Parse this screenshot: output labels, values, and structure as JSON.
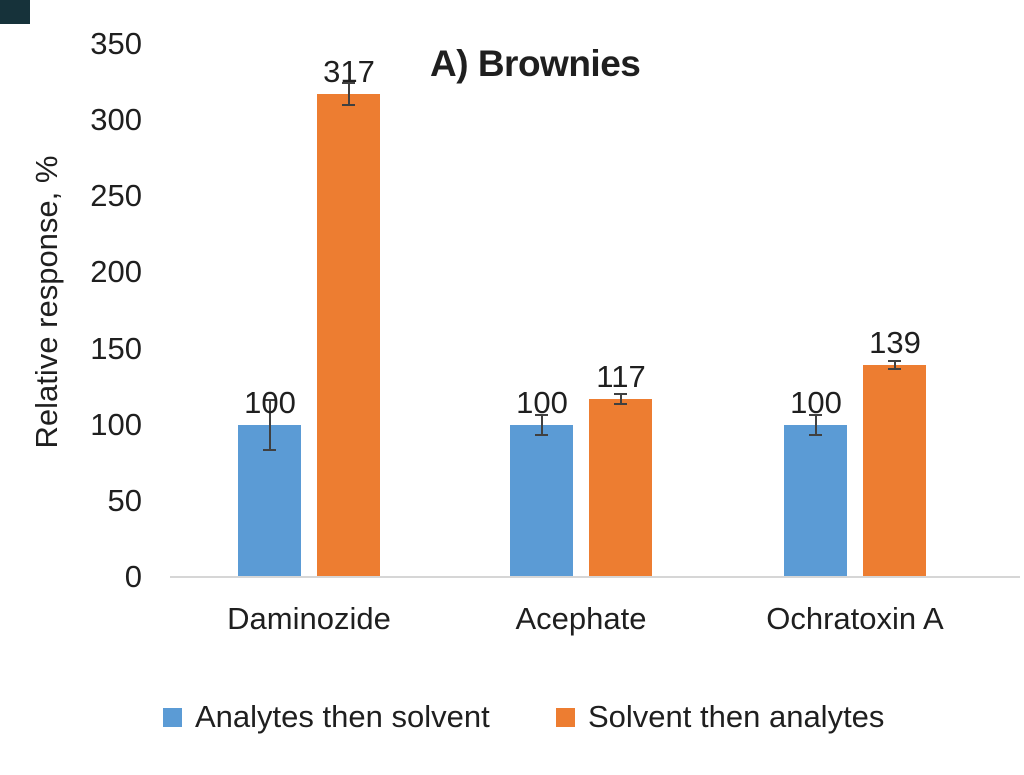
{
  "chart_data": {
    "type": "bar",
    "title": "A) Brownies",
    "ylabel": "Relative response, %",
    "xlabel": "",
    "categories": [
      "Daminozide",
      "Acephate",
      "Ochratoxin A"
    ],
    "series": [
      {
        "name": "Analytes then solvent",
        "color": "#5B9BD5",
        "values": [
          100,
          100,
          100
        ],
        "errors": [
          17,
          7,
          7
        ]
      },
      {
        "name": "Solvent then analytes",
        "color": "#ED7D31",
        "values": [
          317,
          117,
          139
        ],
        "errors": [
          8,
          4,
          3
        ]
      }
    ],
    "data_labels": [
      [
        "100",
        "100",
        "100"
      ],
      [
        "317",
        "117",
        "139"
      ]
    ],
    "ylim": [
      0,
      350
    ],
    "yticks": [
      0,
      50,
      100,
      150,
      200,
      250,
      300,
      350
    ],
    "grid": false,
    "error_bars": true,
    "legend_position": "bottom"
  },
  "colors": {
    "background": "#ffffff",
    "axis_line": "#d6d6d6",
    "text": "#1f1f1f",
    "error_bar": "#404040",
    "corner_artifact": "#16323a"
  }
}
